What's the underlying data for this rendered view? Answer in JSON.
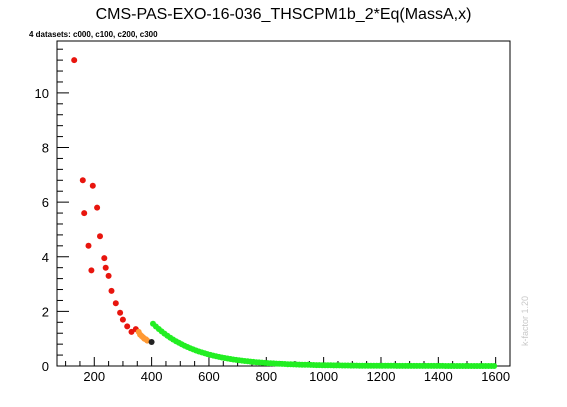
{
  "chart_data": {
    "type": "scatter",
    "title": "CMS-PAS-EXO-16-036_THSCPM1b_2*Eq(MassA,x)",
    "subtitle": "4 datasets: c000, c100, c200, c300",
    "side_note": "k-factor 1.20",
    "xlabel": "",
    "ylabel": "",
    "xlim": [
      70,
      1650
    ],
    "ylim": [
      0,
      11.9
    ],
    "x_ticks": [
      200,
      400,
      600,
      800,
      1000,
      1200,
      1400,
      1600
    ],
    "y_ticks": [
      0,
      2,
      4,
      6,
      8,
      10
    ],
    "grid": false,
    "colors": {
      "c000": "#e8150e",
      "c100": "#ff9933",
      "c200": "#222222",
      "c300": "#22ee22"
    },
    "series": [
      {
        "name": "c000",
        "points": [
          [
            130,
            11.2
          ],
          [
            160,
            6.8
          ],
          [
            165,
            5.6
          ],
          [
            180,
            4.4
          ],
          [
            195,
            6.6
          ],
          [
            190,
            3.5
          ],
          [
            210,
            5.8
          ],
          [
            220,
            4.75
          ],
          [
            235,
            3.95
          ],
          [
            240,
            3.6
          ],
          [
            250,
            3.3
          ],
          [
            260,
            2.75
          ],
          [
            275,
            2.3
          ],
          [
            290,
            1.95
          ],
          [
            300,
            1.7
          ],
          [
            315,
            1.45
          ],
          [
            330,
            1.25
          ],
          [
            345,
            1.35
          ]
        ]
      },
      {
        "name": "c100",
        "points": [
          [
            355,
            1.25
          ],
          [
            360,
            1.15
          ],
          [
            365,
            1.1
          ],
          [
            370,
            1.05
          ],
          [
            375,
            1.0
          ],
          [
            380,
            0.98
          ],
          [
            385,
            0.93
          ]
        ]
      },
      {
        "name": "c200",
        "points": [
          [
            400,
            0.88
          ]
        ]
      },
      {
        "name": "c300",
        "function": "1.6*exp(-(x-400)/150)",
        "x_range": [
          405,
          1600
        ],
        "x_step": 10
      }
    ]
  }
}
